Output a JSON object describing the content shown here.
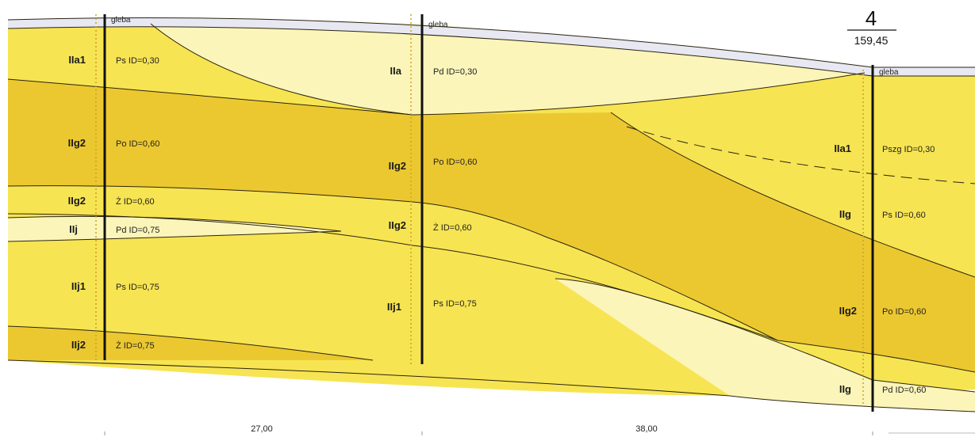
{
  "colors": {
    "light": "#fcf5ba",
    "mid": "#f7e452",
    "dark": "#ecc830",
    "soil": "#e7e8f2",
    "boundary": "#2a2410",
    "borehole": "#111111",
    "dots": "#c9a227"
  },
  "boreholes": [
    {
      "id": "bh-1",
      "soil_label": "gleba",
      "layers": [
        {
          "code": "IIa1",
          "desc": "Ps ID=0,30"
        },
        {
          "code": "IIg2",
          "desc": "Po ID=0,60"
        },
        {
          "code": "IIg2",
          "desc": "Ż ID=0,60"
        },
        {
          "code": "IIj",
          "desc": "Pd ID=0,75"
        },
        {
          "code": "IIj1",
          "desc": "Ps ID=0,75"
        },
        {
          "code": "IIj2",
          "desc": "Ż ID=0,75"
        }
      ]
    },
    {
      "id": "bh-2",
      "soil_label": "gleba",
      "layers": [
        {
          "code": "IIa",
          "desc": "Pd ID=0,30"
        },
        {
          "code": "IIg2",
          "desc": "Po ID=0,60"
        },
        {
          "code": "IIg2",
          "desc": "Ż ID=0,60"
        },
        {
          "code": "IIj1",
          "desc": "Ps ID=0,75"
        }
      ]
    },
    {
      "id": "bh-4",
      "number": "4",
      "elevation": "159,45",
      "soil_label": "gleba",
      "layers": [
        {
          "code": "IIa1",
          "desc": "Pszg ID=0,30"
        },
        {
          "code": "IIg",
          "desc": "Ps ID=0,60"
        },
        {
          "code": "IIg2",
          "desc": "Po ID=0,60"
        },
        {
          "code": "IIg",
          "desc": "Pd ID=0,60"
        }
      ]
    }
  ],
  "distances": [
    "27,00",
    "38,00"
  ]
}
